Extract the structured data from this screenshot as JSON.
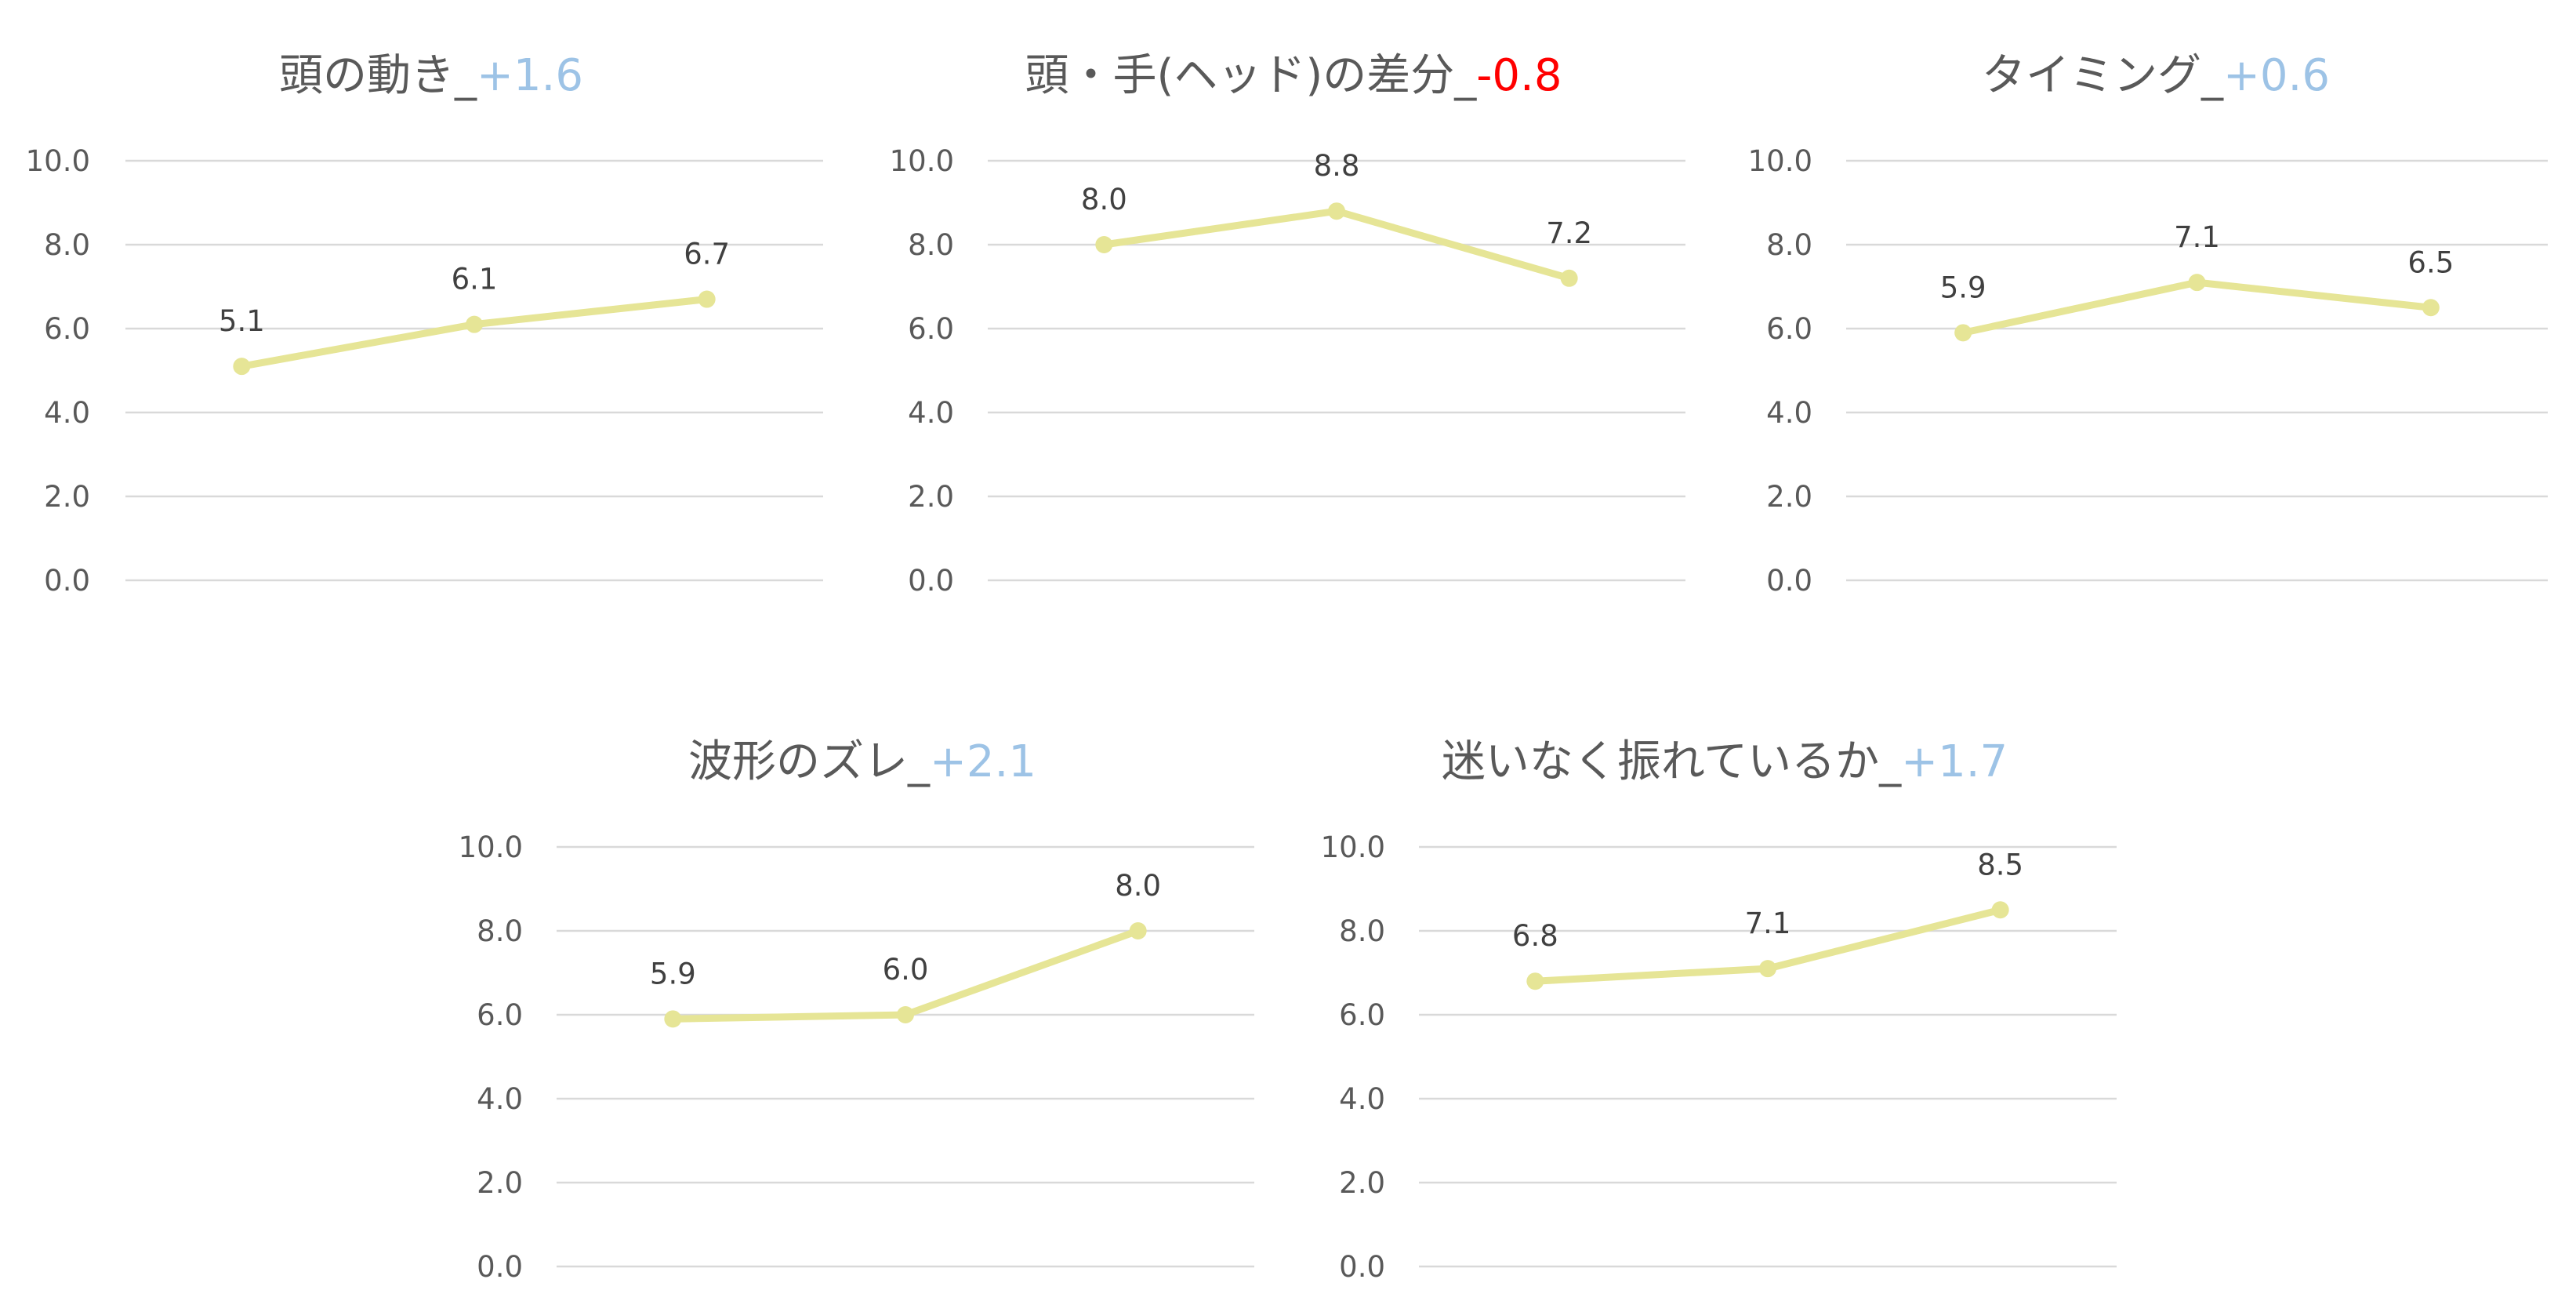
{
  "chart_data": [
    {
      "type": "line",
      "title": {
        "text": "頭の動き_",
        "change": "+1.6",
        "change_color": "#9dc3e6"
      },
      "categories": [
        "",
        "",
        ""
      ],
      "values": [
        5.1,
        6.1,
        6.7
      ],
      "data_labels": [
        "5.1",
        "6.1",
        "6.7"
      ],
      "ylim": [
        0,
        10
      ],
      "y_ticks": [
        "0.0",
        "2.0",
        "4.0",
        "6.0",
        "8.0",
        "10.0"
      ],
      "grid": true,
      "line_color": "#e6e596"
    },
    {
      "type": "line",
      "title": {
        "text": "頭・手(ヘッド)の差分_",
        "change": "-0.8",
        "change_color": "#ff0000"
      },
      "categories": [
        "",
        "",
        ""
      ],
      "values": [
        8.0,
        8.8,
        7.2
      ],
      "data_labels": [
        "8.0",
        "8.8",
        "7.2"
      ],
      "ylim": [
        0,
        10
      ],
      "y_ticks": [
        "0.0",
        "2.0",
        "4.0",
        "6.0",
        "8.0",
        "10.0"
      ],
      "grid": true,
      "line_color": "#e6e596"
    },
    {
      "type": "line",
      "title": {
        "text": "タイミング_",
        "change": "+0.6",
        "change_color": "#9dc3e6"
      },
      "categories": [
        "",
        "",
        ""
      ],
      "values": [
        5.9,
        7.1,
        6.5
      ],
      "data_labels": [
        "5.9",
        "7.1",
        "6.5"
      ],
      "ylim": [
        0,
        10
      ],
      "y_ticks": [
        "0.0",
        "2.0",
        "4.0",
        "6.0",
        "8.0",
        "10.0"
      ],
      "grid": true,
      "line_color": "#e6e596"
    },
    {
      "type": "line",
      "title": {
        "text": "波形のズレ_",
        "change": "+2.1",
        "change_color": "#9dc3e6"
      },
      "categories": [
        "",
        "",
        ""
      ],
      "values": [
        5.9,
        6.0,
        8.0
      ],
      "data_labels": [
        "5.9",
        "6.0",
        "8.0"
      ],
      "ylim": [
        0,
        10
      ],
      "y_ticks": [
        "0.0",
        "2.0",
        "4.0",
        "6.0",
        "8.0",
        "10.0"
      ],
      "grid": true,
      "line_color": "#e6e596"
    },
    {
      "type": "line",
      "title": {
        "text": "迷いなく振れているか_",
        "change": "+1.7",
        "change_color": "#9dc3e6"
      },
      "categories": [
        "",
        "",
        ""
      ],
      "values": [
        6.8,
        7.1,
        8.5
      ],
      "data_labels": [
        "6.8",
        "7.1",
        "8.5"
      ],
      "ylim": [
        0,
        10
      ],
      "y_ticks": [
        "0.0",
        "2.0",
        "4.0",
        "6.0",
        "8.0",
        "10.0"
      ],
      "grid": true,
      "line_color": "#e6e596"
    }
  ]
}
